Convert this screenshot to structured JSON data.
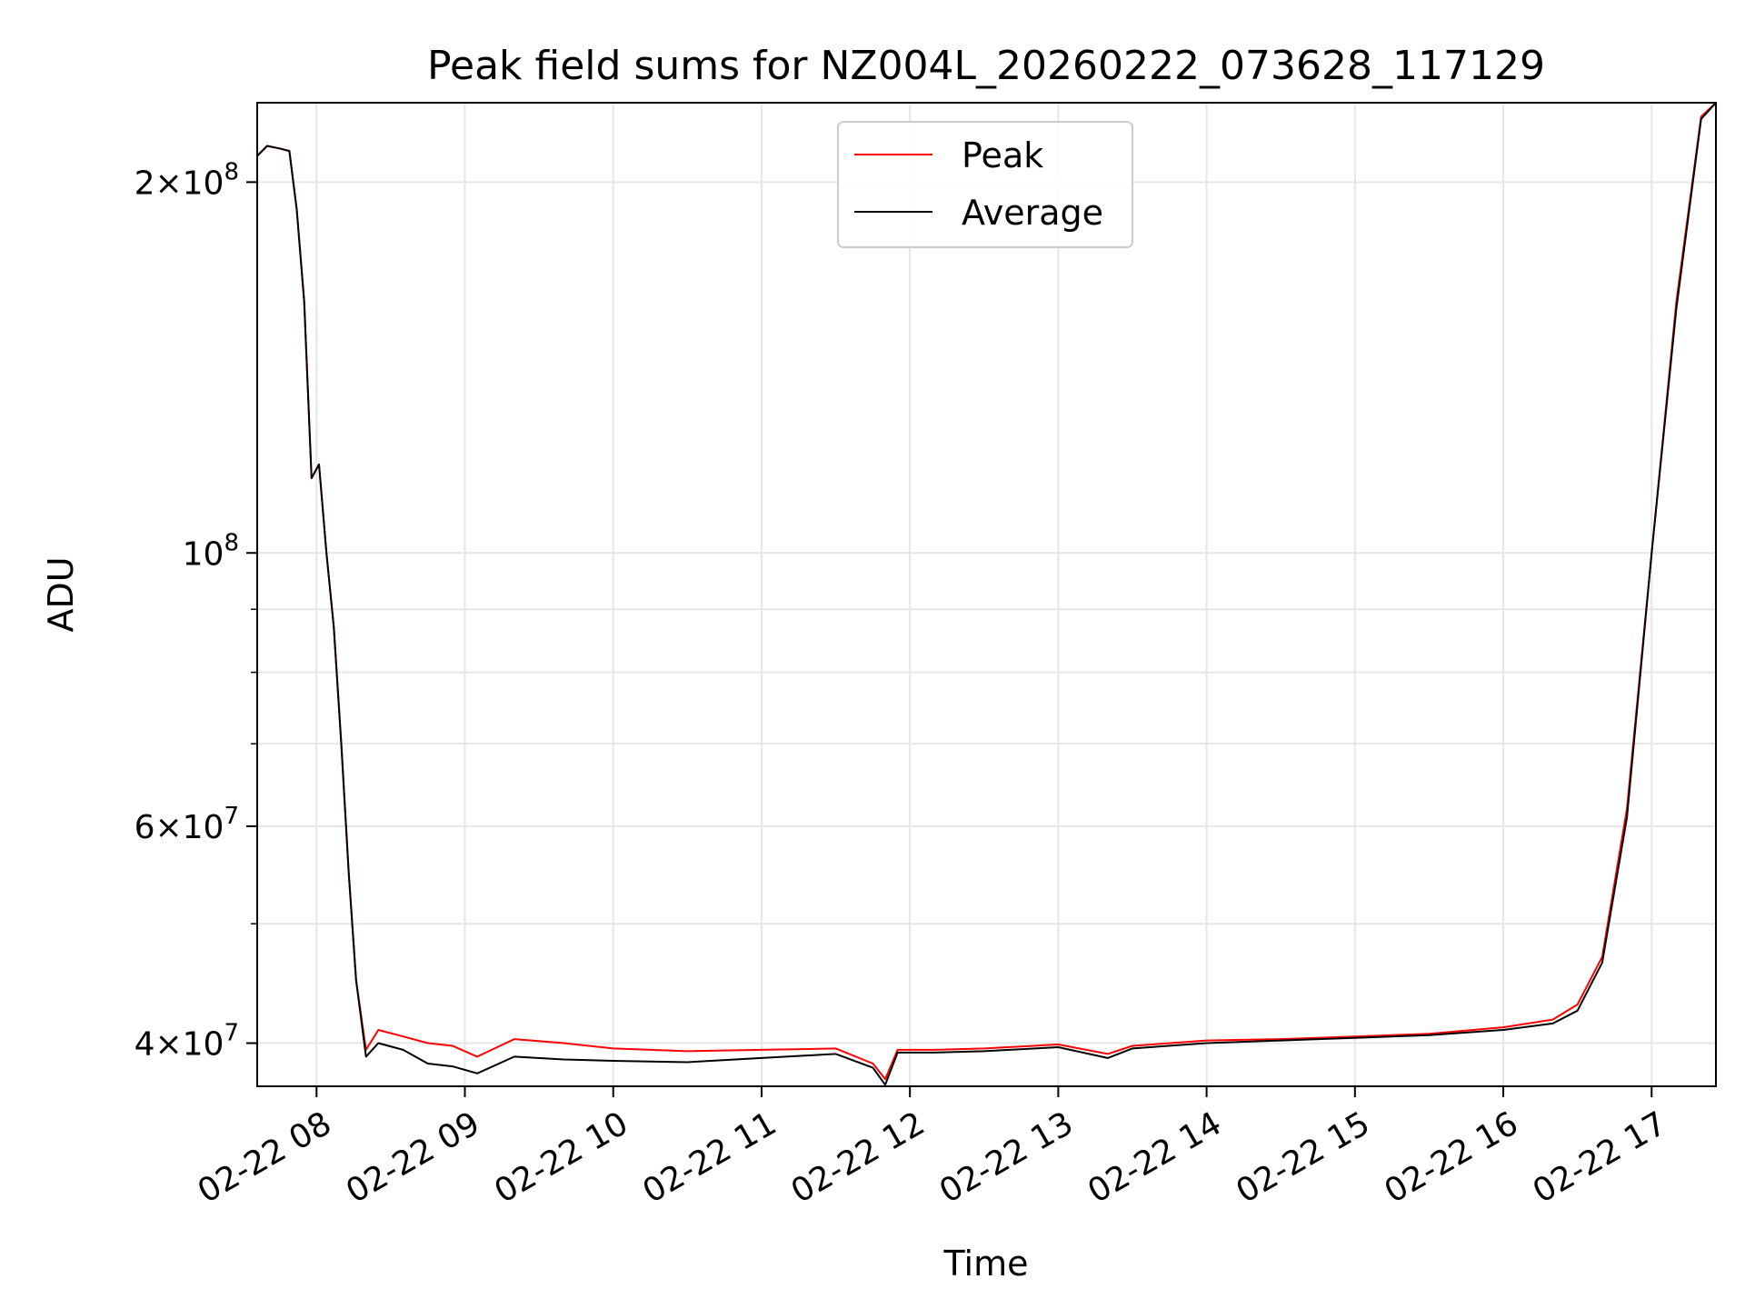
{
  "chart_data": {
    "type": "line",
    "title": "Peak field sums for NZ004L_20260222_073628_117129",
    "xlabel": "Time",
    "ylabel": "ADU",
    "yscale": "log",
    "ylim": [
      36900000,
      232000000
    ],
    "xlim": [
      "2026-02-22 07:36",
      "2026-02-22 17:26"
    ],
    "grid": true,
    "legend_position": "top-center",
    "x_ticks": [
      "02-22 08",
      "02-22 09",
      "02-22 10",
      "02-22 11",
      "02-22 12",
      "02-22 13",
      "02-22 14",
      "02-22 15",
      "02-22 16",
      "02-22 17"
    ],
    "y_ticks": [
      {
        "base": "2",
        "exp": "8",
        "value": 200000000
      },
      {
        "base": "10",
        "exp": "8",
        "value": 100000000
      },
      {
        "base": "6",
        "exp": "7",
        "value": 60000000
      },
      {
        "base": "4",
        "exp": "7",
        "value": 40000000
      }
    ],
    "series": [
      {
        "name": "Peak",
        "color": "#ff0000",
        "points": [
          [
            "2026-02-22 07:36",
            210000000
          ],
          [
            "2026-02-22 07:40",
            214000000
          ],
          [
            "2026-02-22 07:45",
            213000000
          ],
          [
            "2026-02-22 07:49",
            212000000
          ],
          [
            "2026-02-22 07:52",
            190000000
          ],
          [
            "2026-02-22 07:55",
            160000000
          ],
          [
            "2026-02-22 07:58",
            115000000
          ],
          [
            "2026-02-22 08:01",
            118000000
          ],
          [
            "2026-02-22 08:04",
            100000000
          ],
          [
            "2026-02-22 08:07",
            87000000
          ],
          [
            "2026-02-22 08:10",
            70000000
          ],
          [
            "2026-02-22 08:13",
            55000000
          ],
          [
            "2026-02-22 08:16",
            45000000
          ],
          [
            "2026-02-22 08:20",
            39500000
          ],
          [
            "2026-02-22 08:25",
            41000000
          ],
          [
            "2026-02-22 08:35",
            40500000
          ],
          [
            "2026-02-22 08:45",
            40000000
          ],
          [
            "2026-02-22 08:55",
            39800000
          ],
          [
            "2026-02-22 09:05",
            39000000
          ],
          [
            "2026-02-22 09:20",
            40300000
          ],
          [
            "2026-02-22 09:40",
            40000000
          ],
          [
            "2026-02-22 10:00",
            39600000
          ],
          [
            "2026-02-22 10:30",
            39400000
          ],
          [
            "2026-02-22 11:00",
            39500000
          ],
          [
            "2026-02-22 11:30",
            39600000
          ],
          [
            "2026-02-22 11:45",
            38500000
          ],
          [
            "2026-02-22 11:50",
            37400000
          ],
          [
            "2026-02-22 11:55",
            39500000
          ],
          [
            "2026-02-22 12:10",
            39500000
          ],
          [
            "2026-02-22 12:30",
            39600000
          ],
          [
            "2026-02-22 13:00",
            39900000
          ],
          [
            "2026-02-22 13:20",
            39200000
          ],
          [
            "2026-02-22 13:30",
            39800000
          ],
          [
            "2026-02-22 14:00",
            40200000
          ],
          [
            "2026-02-22 14:30",
            40300000
          ],
          [
            "2026-02-22 15:00",
            40500000
          ],
          [
            "2026-02-22 15:30",
            40700000
          ],
          [
            "2026-02-22 16:00",
            41200000
          ],
          [
            "2026-02-22 16:20",
            41800000
          ],
          [
            "2026-02-22 16:30",
            43000000
          ],
          [
            "2026-02-22 16:40",
            47000000
          ],
          [
            "2026-02-22 16:50",
            62000000
          ],
          [
            "2026-02-22 17:00",
            100000000
          ],
          [
            "2026-02-22 17:10",
            160000000
          ],
          [
            "2026-02-22 17:20",
            226000000
          ],
          [
            "2026-02-22 17:26",
            232000000
          ]
        ]
      },
      {
        "name": "Average",
        "color": "#000000",
        "points": [
          [
            "2026-02-22 07:36",
            210000000
          ],
          [
            "2026-02-22 07:40",
            214000000
          ],
          [
            "2026-02-22 07:45",
            213000000
          ],
          [
            "2026-02-22 07:49",
            212000000
          ],
          [
            "2026-02-22 07:52",
            190000000
          ],
          [
            "2026-02-22 07:55",
            160000000
          ],
          [
            "2026-02-22 07:58",
            115000000
          ],
          [
            "2026-02-22 08:01",
            118000000
          ],
          [
            "2026-02-22 08:04",
            100000000
          ],
          [
            "2026-02-22 08:07",
            87000000
          ],
          [
            "2026-02-22 08:10",
            70000000
          ],
          [
            "2026-02-22 08:13",
            55000000
          ],
          [
            "2026-02-22 08:16",
            45000000
          ],
          [
            "2026-02-22 08:20",
            39000000
          ],
          [
            "2026-02-22 08:25",
            40000000
          ],
          [
            "2026-02-22 08:35",
            39500000
          ],
          [
            "2026-02-22 08:45",
            38500000
          ],
          [
            "2026-02-22 08:55",
            38300000
          ],
          [
            "2026-02-22 09:05",
            37800000
          ],
          [
            "2026-02-22 09:20",
            39000000
          ],
          [
            "2026-02-22 09:40",
            38800000
          ],
          [
            "2026-02-22 10:00",
            38700000
          ],
          [
            "2026-02-22 10:30",
            38600000
          ],
          [
            "2026-02-22 11:00",
            38900000
          ],
          [
            "2026-02-22 11:30",
            39200000
          ],
          [
            "2026-02-22 11:45",
            38200000
          ],
          [
            "2026-02-22 11:50",
            37000000
          ],
          [
            "2026-02-22 11:55",
            39300000
          ],
          [
            "2026-02-22 12:10",
            39300000
          ],
          [
            "2026-02-22 12:30",
            39400000
          ],
          [
            "2026-02-22 13:00",
            39700000
          ],
          [
            "2026-02-22 13:20",
            38900000
          ],
          [
            "2026-02-22 13:30",
            39600000
          ],
          [
            "2026-02-22 14:00",
            40000000
          ],
          [
            "2026-02-22 14:30",
            40200000
          ],
          [
            "2026-02-22 15:00",
            40400000
          ],
          [
            "2026-02-22 15:30",
            40600000
          ],
          [
            "2026-02-22 16:00",
            41000000
          ],
          [
            "2026-02-22 16:20",
            41500000
          ],
          [
            "2026-02-22 16:30",
            42500000
          ],
          [
            "2026-02-22 16:40",
            46500000
          ],
          [
            "2026-02-22 16:50",
            61000000
          ],
          [
            "2026-02-22 17:00",
            100000000
          ],
          [
            "2026-02-22 17:10",
            158000000
          ],
          [
            "2026-02-22 17:20",
            225000000
          ],
          [
            "2026-02-22 17:26",
            232000000
          ]
        ]
      }
    ]
  }
}
